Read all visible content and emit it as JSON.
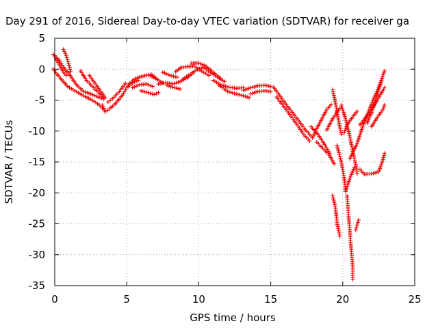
{
  "chart_data": {
    "type": "scatter",
    "title": "Day 291 of 2016, Sidereal Day-to-day VTEC variation (SDTVAR) for receiver ga",
    "xlabel": "GPS time / hours",
    "ylabel": "SDTVAR / TECUs",
    "xlim": [
      0,
      25
    ],
    "ylim": [
      -35,
      5
    ],
    "xticks": [
      0,
      5,
      10,
      15,
      20,
      25
    ],
    "yticks": [
      5,
      0,
      -5,
      -10,
      -15,
      -20,
      -25,
      -30,
      -35
    ],
    "grid": true,
    "marker": "+",
    "color": "#ee0000",
    "series": [
      {
        "values": [
          [
            -0.1,
            2.4
          ],
          [
            0.3,
            1.5
          ],
          [
            0.6,
            0.3
          ],
          [
            1.0,
            -0.8
          ],
          [
            1.5,
            -2.5
          ],
          [
            2.0,
            -3.6
          ],
          [
            2.5,
            -4.0
          ],
          [
            3.0,
            -4.5
          ],
          [
            3.4,
            -4.8
          ]
        ]
      },
      {
        "values": [
          [
            -0.1,
            0.0
          ],
          [
            0.4,
            -1.5
          ],
          [
            0.9,
            -2.8
          ],
          [
            1.4,
            -3.5
          ],
          [
            2.0,
            -4.3
          ],
          [
            2.6,
            -5.0
          ],
          [
            3.1,
            -5.8
          ],
          [
            3.3,
            -6.3
          ]
        ]
      },
      {
        "values": [
          [
            0.0,
            2.0
          ],
          [
            0.3,
            0.8
          ],
          [
            0.6,
            -0.5
          ],
          [
            0.8,
            -1.0
          ]
        ]
      },
      {
        "values": [
          [
            0.6,
            3.2
          ],
          [
            0.8,
            2.2
          ],
          [
            1.0,
            0.6
          ],
          [
            1.1,
            -0.4
          ]
        ]
      },
      {
        "values": [
          [
            1.8,
            -0.3
          ],
          [
            2.2,
            -1.8
          ],
          [
            2.7,
            -3.0
          ],
          [
            3.1,
            -3.9
          ],
          [
            3.4,
            -4.6
          ]
        ]
      },
      {
        "values": [
          [
            2.4,
            -1.0
          ],
          [
            2.8,
            -2.3
          ],
          [
            3.2,
            -3.6
          ],
          [
            3.5,
            -4.6
          ]
        ]
      },
      {
        "values": [
          [
            3.3,
            -5.8
          ],
          [
            3.5,
            -6.9
          ],
          [
            3.8,
            -6.4
          ],
          [
            4.2,
            -5.6
          ],
          [
            4.7,
            -4.2
          ],
          [
            5.0,
            -3.0
          ],
          [
            5.4,
            -2.2
          ],
          [
            5.8,
            -1.8
          ]
        ]
      },
      {
        "values": [
          [
            3.7,
            -5.3
          ],
          [
            4.0,
            -4.8
          ],
          [
            4.5,
            -3.6
          ],
          [
            4.9,
            -2.3
          ]
        ]
      },
      {
        "values": [
          [
            5.1,
            -2.5
          ],
          [
            5.6,
            -1.5
          ],
          [
            6.0,
            -1.2
          ],
          [
            6.5,
            -0.9
          ],
          [
            7.0,
            -1.5
          ],
          [
            7.5,
            -2.2
          ]
        ]
      },
      {
        "values": [
          [
            5.4,
            -3.0
          ],
          [
            5.9,
            -2.5
          ],
          [
            6.4,
            -2.4
          ],
          [
            6.8,
            -2.8
          ]
        ]
      },
      {
        "values": [
          [
            6.0,
            -3.5
          ],
          [
            6.5,
            -3.8
          ],
          [
            6.9,
            -4.1
          ],
          [
            7.2,
            -3.8
          ]
        ]
      },
      {
        "values": [
          [
            6.7,
            -0.8
          ],
          [
            7.1,
            -1.6
          ]
        ]
      },
      {
        "values": [
          [
            7.2,
            -2.4
          ],
          [
            7.7,
            -2.2
          ],
          [
            8.2,
            -2.4
          ],
          [
            8.7,
            -2.0
          ],
          [
            9.2,
            -1.4
          ],
          [
            9.6,
            -0.6
          ]
        ]
      },
      {
        "values": [
          [
            7.5,
            -0.5
          ],
          [
            8.0,
            -1.0
          ],
          [
            8.5,
            -1.3
          ]
        ]
      },
      {
        "values": [
          [
            7.8,
            -2.6
          ],
          [
            8.3,
            -3.0
          ],
          [
            8.7,
            -3.2
          ]
        ]
      },
      {
        "values": [
          [
            8.4,
            -0.4
          ],
          [
            8.8,
            0.3
          ],
          [
            9.2,
            0.4
          ],
          [
            9.7,
            0.5
          ],
          [
            10.2,
            -0.3
          ],
          [
            10.7,
            -1.0
          ]
        ]
      },
      {
        "values": [
          [
            8.9,
            -1.6
          ],
          [
            9.4,
            -0.8
          ],
          [
            9.8,
            -0.2
          ],
          [
            10.3,
            0.3
          ],
          [
            10.8,
            -0.5
          ],
          [
            11.3,
            -1.3
          ],
          [
            11.8,
            -2.0
          ]
        ]
      },
      {
        "values": [
          [
            9.5,
            1.0
          ],
          [
            10.0,
            1.0
          ],
          [
            10.5,
            0.5
          ],
          [
            11.0,
            -0.5
          ],
          [
            11.5,
            -1.5
          ]
        ]
      },
      {
        "values": [
          [
            11.0,
            -1.8
          ],
          [
            11.6,
            -2.6
          ],
          [
            12.1,
            -2.9
          ],
          [
            12.6,
            -3.1
          ],
          [
            13.1,
            -3.0
          ]
        ]
      },
      {
        "values": [
          [
            11.4,
            -2.6
          ],
          [
            12.0,
            -3.6
          ],
          [
            12.6,
            -4.0
          ],
          [
            13.1,
            -4.3
          ],
          [
            13.5,
            -4.6
          ]
        ]
      },
      {
        "values": [
          [
            13.1,
            -3.4
          ],
          [
            13.6,
            -3.0
          ],
          [
            14.1,
            -2.7
          ],
          [
            14.6,
            -2.6
          ],
          [
            15.0,
            -2.8
          ]
        ]
      },
      {
        "values": [
          [
            13.6,
            -4.0
          ],
          [
            14.1,
            -3.6
          ],
          [
            14.6,
            -3.5
          ],
          [
            15.0,
            -3.6
          ]
        ]
      },
      {
        "values": [
          [
            15.2,
            -2.9
          ],
          [
            15.6,
            -4.2
          ],
          [
            16.0,
            -5.5
          ],
          [
            16.5,
            -7.0
          ],
          [
            17.0,
            -8.5
          ],
          [
            17.4,
            -9.8
          ],
          [
            17.8,
            -10.8
          ]
        ]
      },
      {
        "values": [
          [
            15.4,
            -4.5
          ],
          [
            15.9,
            -6.0
          ],
          [
            16.4,
            -7.6
          ],
          [
            16.9,
            -9.2
          ],
          [
            17.3,
            -10.6
          ],
          [
            17.7,
            -11.6
          ]
        ]
      },
      {
        "values": [
          [
            17.9,
            -11.1
          ],
          [
            18.2,
            -9.6
          ],
          [
            18.6,
            -7.8
          ],
          [
            18.9,
            -6.5
          ],
          [
            19.2,
            -5.7
          ]
        ]
      },
      {
        "values": [
          [
            17.8,
            -9.3
          ],
          [
            18.3,
            -10.6
          ],
          [
            18.8,
            -12.4
          ],
          [
            19.1,
            -13.6
          ]
        ]
      },
      {
        "values": [
          [
            18.2,
            -11.8
          ],
          [
            18.7,
            -13.0
          ],
          [
            19.1,
            -14.0
          ],
          [
            19.4,
            -15.3
          ]
        ]
      },
      {
        "values": [
          [
            18.9,
            -9.8
          ],
          [
            19.3,
            -8.0
          ],
          [
            19.7,
            -6.6
          ],
          [
            19.9,
            -6.1
          ]
        ]
      },
      {
        "values": [
          [
            19.3,
            -3.3
          ],
          [
            19.5,
            -5.5
          ],
          [
            19.7,
            -8.2
          ],
          [
            19.9,
            -10.5
          ]
        ]
      },
      {
        "values": [
          [
            19.9,
            -5.8
          ],
          [
            20.1,
            -7.3
          ],
          [
            20.3,
            -8.9
          ],
          [
            20.5,
            -11.0
          ],
          [
            20.7,
            -13.3
          ],
          [
            20.9,
            -15.4
          ],
          [
            21.0,
            -16.9
          ]
        ]
      },
      {
        "values": [
          [
            19.6,
            -12.3
          ],
          [
            19.9,
            -15.0
          ],
          [
            20.1,
            -17.5
          ],
          [
            20.2,
            -19.8
          ],
          [
            20.5,
            -17.6
          ],
          [
            20.8,
            -15.9
          ]
        ]
      },
      {
        "values": [
          [
            19.3,
            -20.4
          ],
          [
            19.5,
            -22.5
          ],
          [
            19.6,
            -24.8
          ],
          [
            19.8,
            -27.0
          ]
        ]
      },
      {
        "values": [
          [
            20.3,
            -20.5
          ],
          [
            20.4,
            -23.5
          ],
          [
            20.5,
            -26.5
          ],
          [
            20.6,
            -29.5
          ],
          [
            20.7,
            -32.0
          ],
          [
            20.7,
            -34.0
          ]
        ]
      },
      {
        "values": [
          [
            20.1,
            -10.3
          ],
          [
            20.3,
            -9.0
          ],
          [
            20.6,
            -8.0
          ],
          [
            21.0,
            -6.8
          ]
        ]
      },
      {
        "values": [
          [
            20.9,
            -26.0
          ],
          [
            21.0,
            -25.2
          ],
          [
            21.1,
            -24.4
          ]
        ]
      },
      {
        "values": [
          [
            20.5,
            -14.5
          ],
          [
            21.0,
            -12.0
          ],
          [
            21.4,
            -9.2
          ],
          [
            21.8,
            -6.8
          ],
          [
            22.2,
            -4.5
          ],
          [
            22.6,
            -2.4
          ],
          [
            22.9,
            -0.3
          ]
        ]
      },
      {
        "values": [
          [
            21.2,
            -9.0
          ],
          [
            21.6,
            -7.8
          ],
          [
            22.0,
            -6.5
          ],
          [
            22.4,
            -5.0
          ],
          [
            22.7,
            -3.8
          ],
          [
            22.9,
            -3.0
          ]
        ]
      },
      {
        "values": [
          [
            21.7,
            -8.7
          ],
          [
            22.0,
            -7.0
          ],
          [
            22.3,
            -4.8
          ],
          [
            22.6,
            -2.5
          ],
          [
            22.8,
            -0.9
          ]
        ]
      },
      {
        "values": [
          [
            21.2,
            -16.2
          ],
          [
            21.5,
            -17.0
          ],
          [
            22.0,
            -16.9
          ],
          [
            22.5,
            -16.6
          ],
          [
            22.8,
            -14.6
          ],
          [
            22.9,
            -13.6
          ]
        ]
      },
      {
        "values": [
          [
            22.0,
            -9.3
          ],
          [
            22.4,
            -7.8
          ],
          [
            22.8,
            -6.5
          ],
          [
            22.9,
            -5.8
          ]
        ]
      }
    ]
  }
}
